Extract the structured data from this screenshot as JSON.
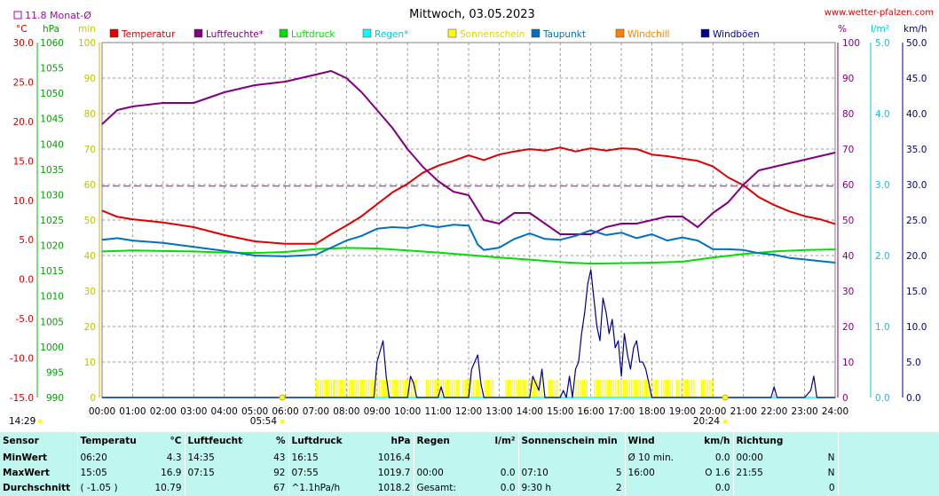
{
  "header": {
    "title": "Mittwoch, 03.05.2023",
    "site": "www.wetter-pfalzen.com",
    "monthly_avg": "11.8 Monat-Ø"
  },
  "axis_units": {
    "temp": "°C",
    "pressure": "hPa",
    "minutes": "min",
    "percent": "%",
    "rain": "l/m²",
    "wind": "km/h"
  },
  "chart_data": {
    "type": "line",
    "x_hours": [
      "00:00",
      "01:00",
      "02:00",
      "03:00",
      "04:00",
      "05:00",
      "06:00",
      "07:00",
      "08:00",
      "09:00",
      "10:00",
      "11:00",
      "12:00",
      "13:00",
      "14:00",
      "15:00",
      "16:00",
      "17:00",
      "18:00",
      "19:00",
      "20:00",
      "21:00",
      "22:00",
      "23:00",
      "24:00"
    ],
    "xlim": [
      0,
      24
    ],
    "sunrise": "05:54",
    "sunset": "20:24",
    "time_left": "14:29",
    "axes": {
      "temp": {
        "min": -15,
        "max": 30,
        "ticks": [
          "30.0",
          "25.0",
          "20.0",
          "15.0",
          "10.0",
          "5.0",
          "0.0",
          "-5.0",
          "-10.0",
          "-15.0"
        ],
        "color": "#d00000"
      },
      "pressure": {
        "min": 990,
        "max": 1060,
        "ticks": [
          "1060",
          "1055",
          "1050",
          "1045",
          "1040",
          "1035",
          "1030",
          "1025",
          "1020",
          "1015",
          "1010",
          "1005",
          "1000",
          "995",
          "990"
        ],
        "color": "#00c000"
      },
      "minutes": {
        "min": 0,
        "max": 100,
        "ticks": [
          "100",
          "90",
          "80",
          "70",
          "60",
          "50",
          "40",
          "30",
          "20",
          "10",
          "0"
        ],
        "color": "#c8c800"
      },
      "percent": {
        "min": 0,
        "max": 100,
        "ticks": [
          "100",
          "90",
          "80",
          "70",
          "60",
          "50",
          "40",
          "30",
          "20",
          "10",
          "0"
        ],
        "color": "#800080"
      },
      "rain": {
        "min": 0,
        "max": 5,
        "ticks": [
          "5.0",
          "4.0",
          "3.0",
          "2.0",
          "1.0",
          "0.0"
        ],
        "color": "#00c8e0"
      },
      "wind": {
        "min": 0,
        "max": 50,
        "ticks": [
          "50.0",
          "45.0",
          "40.0",
          "35.0",
          "30.0",
          "25.0",
          "20.0",
          "15.0",
          "10.0",
          "5.0",
          "0.0"
        ],
        "color": "#000080"
      }
    },
    "legend": [
      {
        "name": "Temperatur",
        "color": "#e00000"
      },
      {
        "name": "Luftfeuchte*",
        "color": "#800080"
      },
      {
        "name": "Luftdruck",
        "color": "#00e000"
      },
      {
        "name": "Regen*",
        "color": "#00ffff"
      },
      {
        "name": "Sonnenschein",
        "color": "#ffff00"
      },
      {
        "name": "Taupunkt",
        "color": "#0070c0"
      },
      {
        "name": "Windchill",
        "color": "#ff8000"
      },
      {
        "name": "Windböen",
        "color": "#000090"
      }
    ],
    "monthly_avg_temp": 11.8,
    "series": [
      {
        "name": "Temperatur",
        "axis": "temp",
        "color": "#e00000",
        "x": [
          0,
          0.5,
          1,
          2,
          3,
          4,
          5,
          6,
          7,
          7.5,
          8,
          8.5,
          9,
          9.5,
          10,
          10.5,
          11,
          11.5,
          12,
          12.5,
          13,
          13.5,
          14,
          14.5,
          15,
          15.5,
          16,
          16.5,
          17,
          17.5,
          18,
          18.5,
          19,
          19.5,
          20,
          20.5,
          21,
          21.5,
          22,
          22.5,
          23,
          23.5,
          24
        ],
        "y": [
          8.7,
          7.9,
          7.6,
          7.2,
          6.6,
          5.6,
          4.8,
          4.5,
          4.5,
          5.7,
          6.8,
          8.0,
          9.5,
          11.0,
          12.1,
          13.5,
          14.4,
          15.0,
          15.7,
          15.1,
          15.8,
          16.2,
          16.5,
          16.3,
          16.7,
          16.2,
          16.6,
          16.3,
          16.6,
          16.5,
          15.8,
          15.6,
          15.3,
          15.0,
          14.3,
          12.9,
          11.9,
          10.4,
          9.4,
          8.6,
          8.0,
          7.6,
          7.0
        ]
      },
      {
        "name": "Luftfeuchte*",
        "axis": "percent",
        "color": "#800080",
        "x": [
          0,
          0.5,
          1,
          2,
          3,
          4,
          5,
          6,
          6.5,
          7,
          7.5,
          8,
          8.5,
          9,
          9.5,
          10,
          10.5,
          11,
          11.5,
          12,
          12.5,
          13,
          13.5,
          14,
          14.5,
          15,
          15.5,
          16,
          16.5,
          17,
          17.5,
          18,
          18.5,
          19,
          19.5,
          20,
          20.5,
          21,
          21.5,
          22,
          22.5,
          23,
          23.5,
          24
        ],
        "y": [
          77,
          81,
          82,
          83,
          83,
          86,
          88,
          89,
          90,
          91,
          92,
          90,
          86,
          81,
          76,
          70,
          65,
          61,
          58,
          57,
          50,
          49,
          52,
          52,
          49,
          46,
          46,
          46,
          48,
          49,
          49,
          50,
          51,
          51,
          48,
          52,
          55,
          60,
          64,
          65,
          66,
          67,
          68,
          69
        ]
      },
      {
        "name": "Luftdruck",
        "axis": "pressure",
        "color": "#00e000",
        "x": [
          0,
          1,
          2,
          3,
          4,
          5,
          6,
          7,
          8,
          9,
          10,
          11,
          12,
          13,
          14,
          15,
          16,
          17,
          18,
          19,
          20,
          21,
          22,
          23,
          24
        ],
        "y": [
          1018.8,
          1019.0,
          1018.9,
          1018.8,
          1018.6,
          1018.5,
          1018.7,
          1019.3,
          1019.5,
          1019.4,
          1019.0,
          1018.6,
          1018.1,
          1017.6,
          1017.2,
          1016.7,
          1016.4,
          1016.5,
          1016.6,
          1016.8,
          1017.6,
          1018.3,
          1018.8,
          1019.1,
          1019.2
        ]
      },
      {
        "name": "Taupunkt",
        "axis": "temp",
        "color": "#0070c0",
        "x": [
          0,
          0.5,
          1,
          2,
          3,
          4,
          5,
          6,
          7,
          7.5,
          8,
          8.5,
          9,
          9.5,
          10,
          10.5,
          11,
          11.5,
          12,
          12.3,
          12.5,
          13,
          13.5,
          14,
          14.5,
          15,
          15.5,
          16,
          16.5,
          17,
          17.5,
          18,
          18.5,
          19,
          19.5,
          20,
          20.5,
          21,
          21.5,
          22,
          22.5,
          23,
          23.5,
          24
        ],
        "y": [
          5.0,
          5.2,
          4.9,
          4.6,
          4.1,
          3.6,
          3.0,
          2.9,
          3.1,
          4.0,
          4.9,
          5.5,
          6.4,
          6.6,
          6.5,
          6.9,
          6.6,
          6.9,
          6.8,
          4.4,
          3.7,
          4.0,
          5.1,
          5.8,
          5.1,
          5.0,
          5.5,
          6.2,
          5.6,
          5.9,
          5.2,
          5.7,
          4.9,
          5.3,
          4.9,
          3.8,
          3.8,
          3.7,
          3.3,
          3.1,
          2.7,
          2.5,
          2.3,
          2.1
        ]
      },
      {
        "name": "Windböen",
        "axis": "wind",
        "color": "#000090",
        "x": [
          0,
          8.9,
          9.0,
          9.2,
          9.3,
          9.4,
          10.0,
          10.1,
          10.2,
          10.3,
          11.0,
          11.1,
          11.2,
          12.0,
          12.1,
          12.3,
          12.4,
          12.5,
          14.0,
          14.1,
          14.3,
          14.4,
          14.5,
          15.0,
          15.1,
          15.2,
          15.3,
          15.4,
          15.5,
          15.6,
          15.7,
          15.8,
          15.9,
          16.0,
          16.1,
          16.2,
          16.3,
          16.4,
          16.5,
          16.6,
          16.7,
          16.8,
          16.9,
          17.0,
          17.1,
          17.2,
          17.3,
          17.4,
          17.5,
          17.6,
          17.7,
          17.8,
          17.9,
          18.0,
          18.1,
          21.9,
          22.0,
          22.1,
          23.0,
          23.2,
          23.3,
          23.4,
          24
        ],
        "y": [
          0,
          0,
          5,
          8,
          3,
          0,
          0,
          3,
          2,
          0,
          0,
          1.5,
          0,
          0,
          4,
          6,
          2,
          0,
          0,
          3,
          1,
          4,
          0,
          0,
          1,
          0,
          3,
          0,
          4,
          5,
          9,
          12,
          16,
          18,
          14,
          10,
          8,
          14,
          12,
          9,
          11,
          7,
          8,
          3,
          9,
          6,
          4,
          7,
          8,
          5,
          5,
          4,
          2,
          0,
          0,
          0,
          1.5,
          0,
          0,
          1,
          3,
          0,
          0
        ]
      }
    ],
    "sunshine_minutes": {
      "axis": "minutes",
      "color": "#ffff00",
      "intervals": [
        [
          7.0,
          7.6
        ],
        [
          7.6,
          8.3
        ],
        [
          8.3,
          9.2
        ],
        [
          9.2,
          9.9
        ],
        [
          9.9,
          10.3
        ],
        [
          10.6,
          11.3
        ],
        [
          11.3,
          11.7
        ],
        [
          11.8,
          12.4
        ],
        [
          12.5,
          12.8
        ],
        [
          13.2,
          13.8
        ],
        [
          13.8,
          14.4
        ],
        [
          14.6,
          14.9
        ],
        [
          15.5,
          15.9
        ],
        [
          16.1,
          16.9
        ],
        [
          16.9,
          17.6
        ],
        [
          17.6,
          18.2
        ],
        [
          18.3,
          18.7
        ],
        [
          18.8,
          19.4
        ],
        [
          19.6,
          20.0
        ]
      ],
      "value": 5
    },
    "rain": {
      "axis": "rain",
      "color": "#00ffff",
      "value": 0.0
    }
  },
  "stats": {
    "headers": {
      "sensor": "Sensor",
      "temp": "Temperatur",
      "temp_unit": "°C",
      "hum": "Luftfeuchte",
      "hum_unit": "%",
      "press": "Luftdruck",
      "press_unit": "hPa",
      "rain": "Regen",
      "rain_unit": "l/m²",
      "sun": "Sonnenschein min",
      "wind": "Wind",
      "wind_unit": "km/h",
      "dir": "Richtung"
    },
    "rows": [
      {
        "label": "MinWert",
        "temp_time": "06:20",
        "temp_val": "4.3",
        "hum_time": "14:35",
        "hum_val": "43",
        "press_time": "16:15",
        "press_val": "1016.4",
        "rain_time": "",
        "rain_val": "",
        "sun_time": "",
        "sun_val": "",
        "wind_time": "Ø 10 min.",
        "wind_val": "0.0",
        "dir_time": "00:00",
        "dir_val": "N"
      },
      {
        "label": "MaxWert",
        "temp_time": "15:05",
        "temp_val": "16.9",
        "hum_time": "07:15",
        "hum_val": "92",
        "press_time": "07:55",
        "press_val": "1019.7",
        "rain_time": "00:00",
        "rain_val": "0.0",
        "sun_time": "07:10",
        "sun_val": "5",
        "wind_time": "16:00",
        "wind_val": "O 1.6",
        "dir_time": "21:55",
        "dir_val": "N"
      },
      {
        "label": "Durchschnitt",
        "temp_time": "( -1.05 )",
        "temp_val": "10.79",
        "hum_time": "",
        "hum_val": "67",
        "press_time": "^1.1hPa/h",
        "press_val": "1018.2",
        "rain_time": "Gesamt:",
        "rain_val": "0.0",
        "sun_time": "9:30 h",
        "sun_val": "2",
        "wind_time": "",
        "wind_val": "0.0",
        "dir_time": "",
        "dir_val": "0"
      }
    ]
  }
}
